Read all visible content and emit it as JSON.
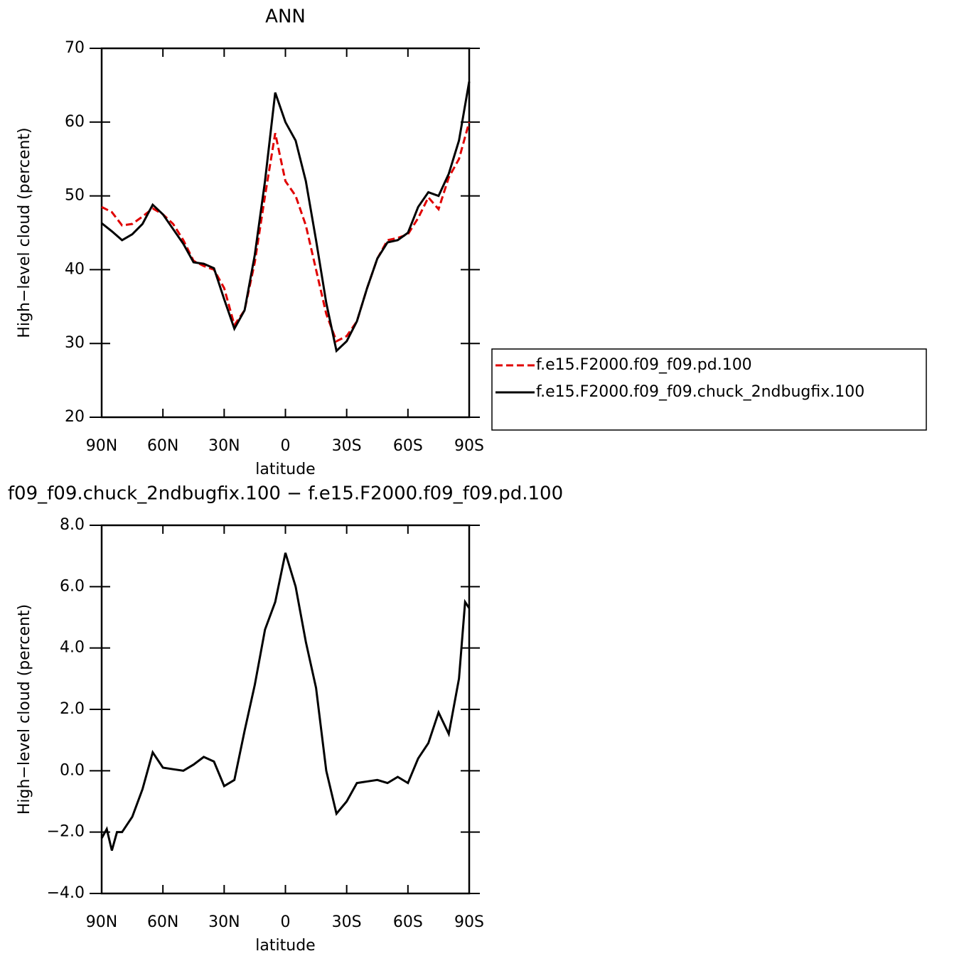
{
  "chart_data": [
    {
      "type": "line",
      "title": "ANN",
      "xlabel": "latitude",
      "ylabel": "High−level cloud (percent)",
      "x": [
        90,
        85,
        80,
        75,
        70,
        65,
        60,
        55,
        50,
        45,
        40,
        35,
        30,
        25,
        20,
        15,
        10,
        5,
        0,
        -5,
        -10,
        -15,
        -20,
        -25,
        -30,
        -35,
        -40,
        -45,
        -50,
        -55,
        -60,
        -65,
        -70,
        -75,
        -80,
        -85,
        -90
      ],
      "series": [
        {
          "name": "f.e15.F2000.f09_f09.pd.100",
          "color": "#e00000",
          "linestyle": "dashed",
          "values": [
            48.5,
            47.8,
            46.0,
            46.2,
            47.2,
            48.3,
            47.5,
            46.2,
            44,
            41.2,
            40.5,
            40.0,
            37.5,
            32.5,
            34.5,
            41,
            50,
            58.5,
            52,
            50,
            46,
            40,
            34,
            30.3,
            31,
            33,
            37.5,
            41.5,
            44,
            44.3,
            44.8,
            47,
            49.8,
            48.2,
            52.5,
            55,
            60
          ]
        },
        {
          "name": "f.e15.F2000.f09_f09.chuck_2ndbugfix.100",
          "color": "#000000",
          "linestyle": "solid",
          "values": [
            46.3,
            45.2,
            44,
            44.8,
            46.2,
            48.8,
            47.5,
            45.5,
            43.5,
            41,
            40.8,
            40.2,
            36,
            32,
            34.5,
            42,
            52,
            64,
            60,
            57.5,
            52,
            44,
            35.5,
            29,
            30.3,
            33,
            37.5,
            41.5,
            43.7,
            44,
            45,
            48.5,
            50.5,
            50,
            53,
            57.5,
            65.5
          ]
        }
      ],
      "xlim": [
        90,
        -90
      ],
      "xticks": [
        {
          "value": 90,
          "label": "90N"
        },
        {
          "value": 60,
          "label": "60N"
        },
        {
          "value": 30,
          "label": "30N"
        },
        0,
        {
          "value": -30,
          "label": "30S"
        },
        {
          "value": -60,
          "label": "60S"
        },
        {
          "value": -90,
          "label": "90S"
        }
      ],
      "ylim": [
        20,
        70
      ],
      "yticks": [
        20,
        30,
        40,
        50,
        60,
        70
      ],
      "legend": "outside-right"
    },
    {
      "type": "line",
      "title": "f09_f09.chuck_2ndbugfix.100 − f.e15.F2000.f09_f09.pd.100",
      "xlabel": "latitude",
      "ylabel": "High−level cloud (percent)",
      "x": [
        90,
        87.5,
        85,
        82.5,
        80,
        75,
        70,
        65,
        60,
        55,
        50,
        45,
        40,
        35,
        30,
        25,
        20,
        15,
        10,
        5,
        0,
        -5,
        -10,
        -15,
        -20,
        -25,
        -30,
        -35,
        -40,
        -45,
        -50,
        -55,
        -60,
        -65,
        -70,
        -75,
        -80,
        -85,
        -88,
        -90
      ],
      "series": [
        {
          "color": "#000000",
          "linestyle": "solid",
          "values": [
            -2.2,
            -1.9,
            -2.6,
            -2.0,
            -2.0,
            -1.5,
            -0.6,
            0.6,
            0.1,
            0.05,
            0.0,
            0.2,
            0.45,
            0.3,
            -0.5,
            -0.3,
            1.3,
            2.8,
            4.6,
            5.5,
            7.1,
            6.0,
            4.2,
            2.7,
            0.0,
            -1.4,
            -1.0,
            -0.4,
            -0.35,
            -0.3,
            -0.4,
            -0.2,
            -0.4,
            0.4,
            0.9,
            1.9,
            1.2,
            3.0,
            5.5,
            5.3
          ]
        }
      ],
      "xlim": [
        90,
        -90
      ],
      "xticks": [
        {
          "value": 90,
          "label": "90N"
        },
        {
          "value": 60,
          "label": "60N"
        },
        {
          "value": 30,
          "label": "30N"
        },
        0,
        {
          "value": -30,
          "label": "30S"
        },
        {
          "value": -60,
          "label": "60S"
        },
        {
          "value": -90,
          "label": "90S"
        }
      ],
      "ylim": [
        -4,
        8
      ],
      "yticks": [
        {
          "value": -4,
          "label": "−4.0"
        },
        {
          "value": -2,
          "label": "−2.0"
        },
        {
          "value": 0,
          "label": "0.0"
        },
        {
          "value": 2,
          "label": "2.0"
        },
        {
          "value": 4,
          "label": "4.0"
        },
        {
          "value": 6,
          "label": "6.0"
        },
        {
          "value": 8,
          "label": "8.0"
        }
      ]
    }
  ]
}
